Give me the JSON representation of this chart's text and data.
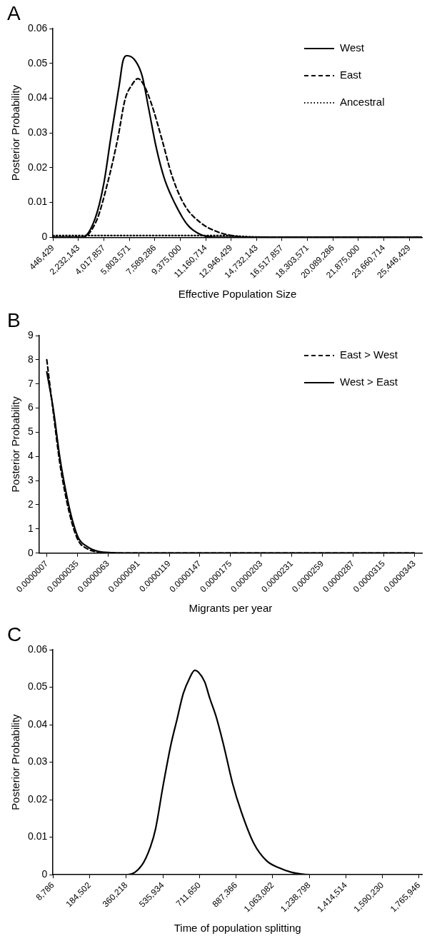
{
  "chart_data": [
    {
      "type": "line",
      "annotations": [
        "A"
      ],
      "xlabel": "Effective Population Size",
      "ylabel": "Posterior Probability",
      "legend": "top right",
      "marker": "none",
      "grid": false,
      "xlim": [
        446429,
        26339286
      ],
      "xticks": [
        {
          "value": 446429,
          "label": "446,429"
        },
        {
          "value": 2232143,
          "label": "2,232,143"
        },
        {
          "value": 4017857,
          "label": "4,017,857"
        },
        {
          "value": 5803571,
          "label": "5,803,571"
        },
        {
          "value": 7589286,
          "label": "7,589,286"
        },
        {
          "value": 9375000,
          "label": "9,375,000"
        },
        {
          "value": 11160714,
          "label": "11,160,714"
        },
        {
          "value": 12946429,
          "label": "12,946,429"
        },
        {
          "value": 14732143,
          "label": "14,732,143"
        },
        {
          "value": 16517857,
          "label": "16,517,857"
        },
        {
          "value": 18303571,
          "label": "18,303,571"
        },
        {
          "value": 20089286,
          "label": "20,089,286"
        },
        {
          "value": 21875000,
          "label": "21,875,000"
        },
        {
          "value": 23660714,
          "label": "23,660,714"
        },
        {
          "value": 25446429,
          "label": "25,446,429"
        }
      ],
      "ylim": [
        0,
        0.06
      ],
      "yticks": [
        0,
        0.01,
        0.02,
        0.03,
        0.04,
        0.05,
        0.06
      ],
      "series": [
        {
          "name": "West",
          "color": "#000000",
          "line_style": "solid",
          "x": [
            446429,
            2500000,
            3400000,
            4000000,
            4500000,
            5100000,
            5350000,
            5650000,
            6250000,
            6700000,
            7150000,
            7700000,
            8250000,
            9000000,
            9900000,
            10800000,
            11900000,
            26339286
          ],
          "values": [
            0,
            0,
            0.0054,
            0.0152,
            0.0286,
            0.0439,
            0.0506,
            0.0522,
            0.0506,
            0.0464,
            0.0372,
            0.0256,
            0.017,
            0.0097,
            0.0035,
            0.0008,
            0,
            0
          ]
        },
        {
          "name": "East",
          "color": "#000000",
          "line_style": "dashed",
          "x": [
            446429,
            2500000,
            3500000,
            4250000,
            5000000,
            5500000,
            6000000,
            6400000,
            6800000,
            7350000,
            8100000,
            8800000,
            9700000,
            10800000,
            11900000,
            13000000,
            14500000,
            26339286
          ],
          "values": [
            0,
            0,
            0.0048,
            0.0152,
            0.0286,
            0.0396,
            0.0439,
            0.0456,
            0.0439,
            0.0384,
            0.028,
            0.0176,
            0.0091,
            0.0042,
            0.0017,
            0.0005,
            0,
            0
          ]
        },
        {
          "name": "Ancestral",
          "color": "#000000",
          "line_style": "dotted",
          "x": [
            446429,
            12500000,
            14000000,
            16000000,
            26339286
          ],
          "values": [
            0.0005,
            0.0005,
            0.0002,
            0,
            0
          ]
        }
      ]
    },
    {
      "type": "line",
      "annotations": [
        "B"
      ],
      "xlabel": "Migrants per year",
      "ylabel": "Posterior Probability",
      "legend": "top right",
      "marker": "none",
      "grid": false,
      "xlim": [
        0,
        3.5e-05
      ],
      "xticks": [
        {
          "value": 7e-07,
          "label": "0.0000007"
        },
        {
          "value": 3.5e-06,
          "label": "0.0000035"
        },
        {
          "value": 6.3e-06,
          "label": "0.0000063"
        },
        {
          "value": 9.1e-06,
          "label": "0.0000091"
        },
        {
          "value": 1.19e-05,
          "label": "0.0000119"
        },
        {
          "value": 1.47e-05,
          "label": "0.0000147"
        },
        {
          "value": 1.75e-05,
          "label": "0.0000175"
        },
        {
          "value": 2.03e-05,
          "label": "0.0000203"
        },
        {
          "value": 2.31e-05,
          "label": "0.0000231"
        },
        {
          "value": 2.59e-05,
          "label": "0.0000259"
        },
        {
          "value": 2.87e-05,
          "label": "0.0000287"
        },
        {
          "value": 3.15e-05,
          "label": "0.0000315"
        },
        {
          "value": 3.43e-05,
          "label": "0.0000343"
        }
      ],
      "ylim": [
        0,
        9
      ],
      "yticks": [
        0,
        1,
        2,
        3,
        4,
        5,
        6,
        7,
        8,
        9
      ],
      "series": [
        {
          "name": "East > West",
          "color": "#000000",
          "line_style": "dashed",
          "x": [
            7e-07,
            1.3e-06,
            1.9e-06,
            2.5e-06,
            3e-06,
            3.6e-06,
            4.4e-06,
            5.4e-06,
            6.6e-06,
            1e-05,
            3.43e-05
          ],
          "values": [
            8,
            5.8,
            3.7,
            2.2,
            1.25,
            0.5,
            0.18,
            0.04,
            0.01,
            0,
            0
          ]
        },
        {
          "name": "West > East",
          "color": "#000000",
          "line_style": "solid",
          "x": [
            7e-07,
            1.3e-06,
            1.9e-06,
            2.5e-06,
            3e-06,
            3.6e-06,
            4.4e-06,
            5.4e-06,
            6.6e-06,
            1e-05,
            3.43e-05
          ],
          "values": [
            7.5,
            5.95,
            3.94,
            2.43,
            1.43,
            0.62,
            0.27,
            0.07,
            0.02,
            0,
            0
          ]
        }
      ]
    },
    {
      "type": "line",
      "annotations": [
        "C"
      ],
      "xlabel": "Time of population splitting",
      "ylabel": "Posterior Probability",
      "marker": "none",
      "grid": false,
      "xlim": [
        8786,
        1780000
      ],
      "xticks": [
        {
          "value": 8786,
          "label": "8,786"
        },
        {
          "value": 184502,
          "label": "184,502"
        },
        {
          "value": 360218,
          "label": "360,218"
        },
        {
          "value": 535934,
          "label": "535,934"
        },
        {
          "value": 711650,
          "label": "711,650"
        },
        {
          "value": 887366,
          "label": "887,366"
        },
        {
          "value": 1063082,
          "label": "1,063,082"
        },
        {
          "value": 1238798,
          "label": "1,238,798"
        },
        {
          "value": 1414514,
          "label": "1,414,514"
        },
        {
          "value": 1590230,
          "label": "1,590,230"
        },
        {
          "value": 1765946,
          "label": "1,765,946"
        }
      ],
      "ylim": [
        0,
        0.06
      ],
      "yticks": [
        0,
        0.01,
        0.02,
        0.03,
        0.04,
        0.05,
        0.06
      ],
      "series": [
        {
          "color": "#000000",
          "line_style": "solid",
          "x": [
            8786,
            368000,
            435000,
            477000,
            501000,
            537000,
            574000,
            604000,
            634000,
            665000,
            689000,
            707000,
            737000,
            761000,
            792000,
            828000,
            870000,
            913000,
            973000,
            1034000,
            1094000,
            1155000,
            1240000,
            1780000
          ],
          "values": [
            0,
            0,
            0.0025,
            0.0075,
            0.0122,
            0.0237,
            0.0345,
            0.0414,
            0.0483,
            0.0525,
            0.0545,
            0.054,
            0.0514,
            0.0471,
            0.0421,
            0.0345,
            0.0245,
            0.0167,
            0.0083,
            0.0037,
            0.0018,
            0.0006,
            0,
            0
          ]
        }
      ]
    }
  ]
}
